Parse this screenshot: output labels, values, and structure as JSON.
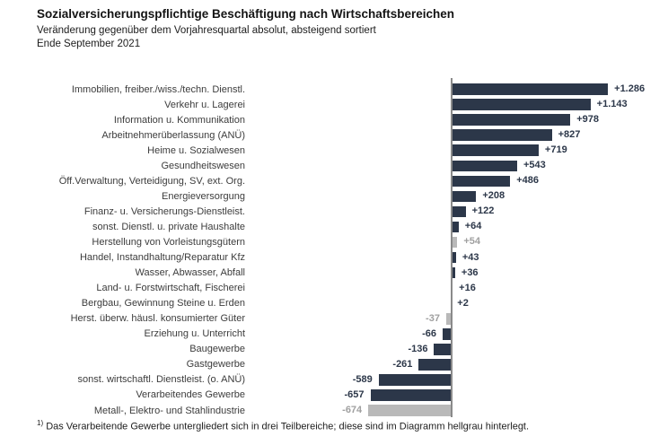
{
  "header": {
    "title": "Sozialversicherungspflichtige Beschäftigung nach Wirtschaftsbereichen",
    "subtitle": "Veränderung gegenüber dem Vorjahresquartal absolut, absteigend sortiert",
    "period": "Ende September 2021"
  },
  "footnote": {
    "marker": "1)",
    "text": "Das Verarbeitende Gewerbe untergliedert sich in drei Teilbereiche; diese sind im Diagramm hellgrau hinterlegt."
  },
  "colors": {
    "bar_primary": "#2c3749",
    "bar_highlight_gray": "#b9b9b9",
    "value_text_primary": "#2c3749",
    "value_text_gray": "#a0a0a0",
    "axis_line": "#8a8a8a"
  },
  "chart_data": {
    "type": "bar",
    "orientation": "horizontal",
    "sort": "descending",
    "title": "Sozialversicherungspflichtige Beschäftigung nach Wirtschaftsbereichen",
    "subtitle": "Veränderung gegenüber dem Vorjahresquartal absolut, absteigend sortiert",
    "period_label": "Ende September 2021",
    "grid": "off",
    "legend": "none",
    "xlim": [
      -700,
      1350
    ],
    "categories": [
      "Immobilien, freiber./wiss./techn. Dienstl.",
      "Verkehr u. Lagerei",
      "Information u. Kommunikation",
      "Arbeitnehmerüberlassung (ANÜ)",
      "Heime u. Sozialwesen",
      "Gesundheitswesen",
      "Öff.Verwaltung, Verteidigung, SV, ext. Org.",
      "Energieversorgung",
      "Finanz- u. Versicherungs-Dienstleist.",
      "sonst. Dienstl. u. private Haushalte",
      "Herstellung von Vorleistungsgütern",
      "Handel, Instandhaltung/Reparatur Kfz",
      "Wasser, Abwasser, Abfall",
      "Land- u. Forstwirtschaft, Fischerei",
      "Bergbau, Gewinnung Steine u. Erden",
      "Herst. überw. häusl. konsumierter Güter",
      "Erziehung u. Unterricht",
      "Baugewerbe",
      "Gastgewerbe",
      "sonst. wirtschaftl. Dienstleist. (o. ANÜ)",
      "Verarbeitendes Gewerbe",
      "Metall-, Elektro- und Stahlindustrie"
    ],
    "values": [
      1286,
      1143,
      978,
      827,
      719,
      543,
      486,
      208,
      122,
      64,
      54,
      43,
      36,
      16,
      2,
      -37,
      -66,
      -136,
      -261,
      -589,
      -657,
      -674
    ],
    "value_labels": [
      "+1.286",
      "+1.143",
      "+978",
      "+827",
      "+719",
      "+543",
      "+486",
      "+208",
      "+122",
      "+64",
      "+54",
      "+43",
      "+36",
      "+16",
      "+2",
      "-37",
      "-66",
      "-136",
      "-261",
      "-589",
      "-657",
      "-674"
    ],
    "gray_bar_indices": [
      10,
      15,
      21
    ]
  }
}
